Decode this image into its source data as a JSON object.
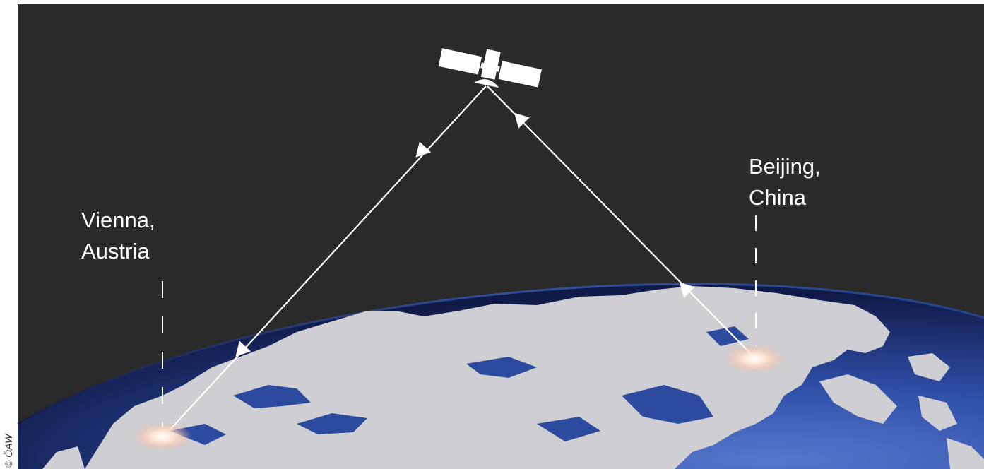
{
  "diagram": {
    "nodes": [
      {
        "id": "satellite",
        "name": "satellite"
      },
      {
        "id": "vienna",
        "label_line1": "Vienna,",
        "label_line2": "Austria"
      },
      {
        "id": "beijing",
        "label_line1": "Beijing,",
        "label_line2": "China"
      }
    ],
    "links": [
      {
        "from": "satellite",
        "to": "vienna"
      },
      {
        "from": "beijing",
        "to": "satellite"
      }
    ],
    "copyright": "© ÖAW",
    "colors": {
      "space": "#2a2a2a",
      "land": "#cfcfd3",
      "ocean_dark": "#0f1a4a",
      "ocean_light": "#4a70c8",
      "beam": "#ffffff",
      "glow": "#ffe8d8"
    }
  }
}
